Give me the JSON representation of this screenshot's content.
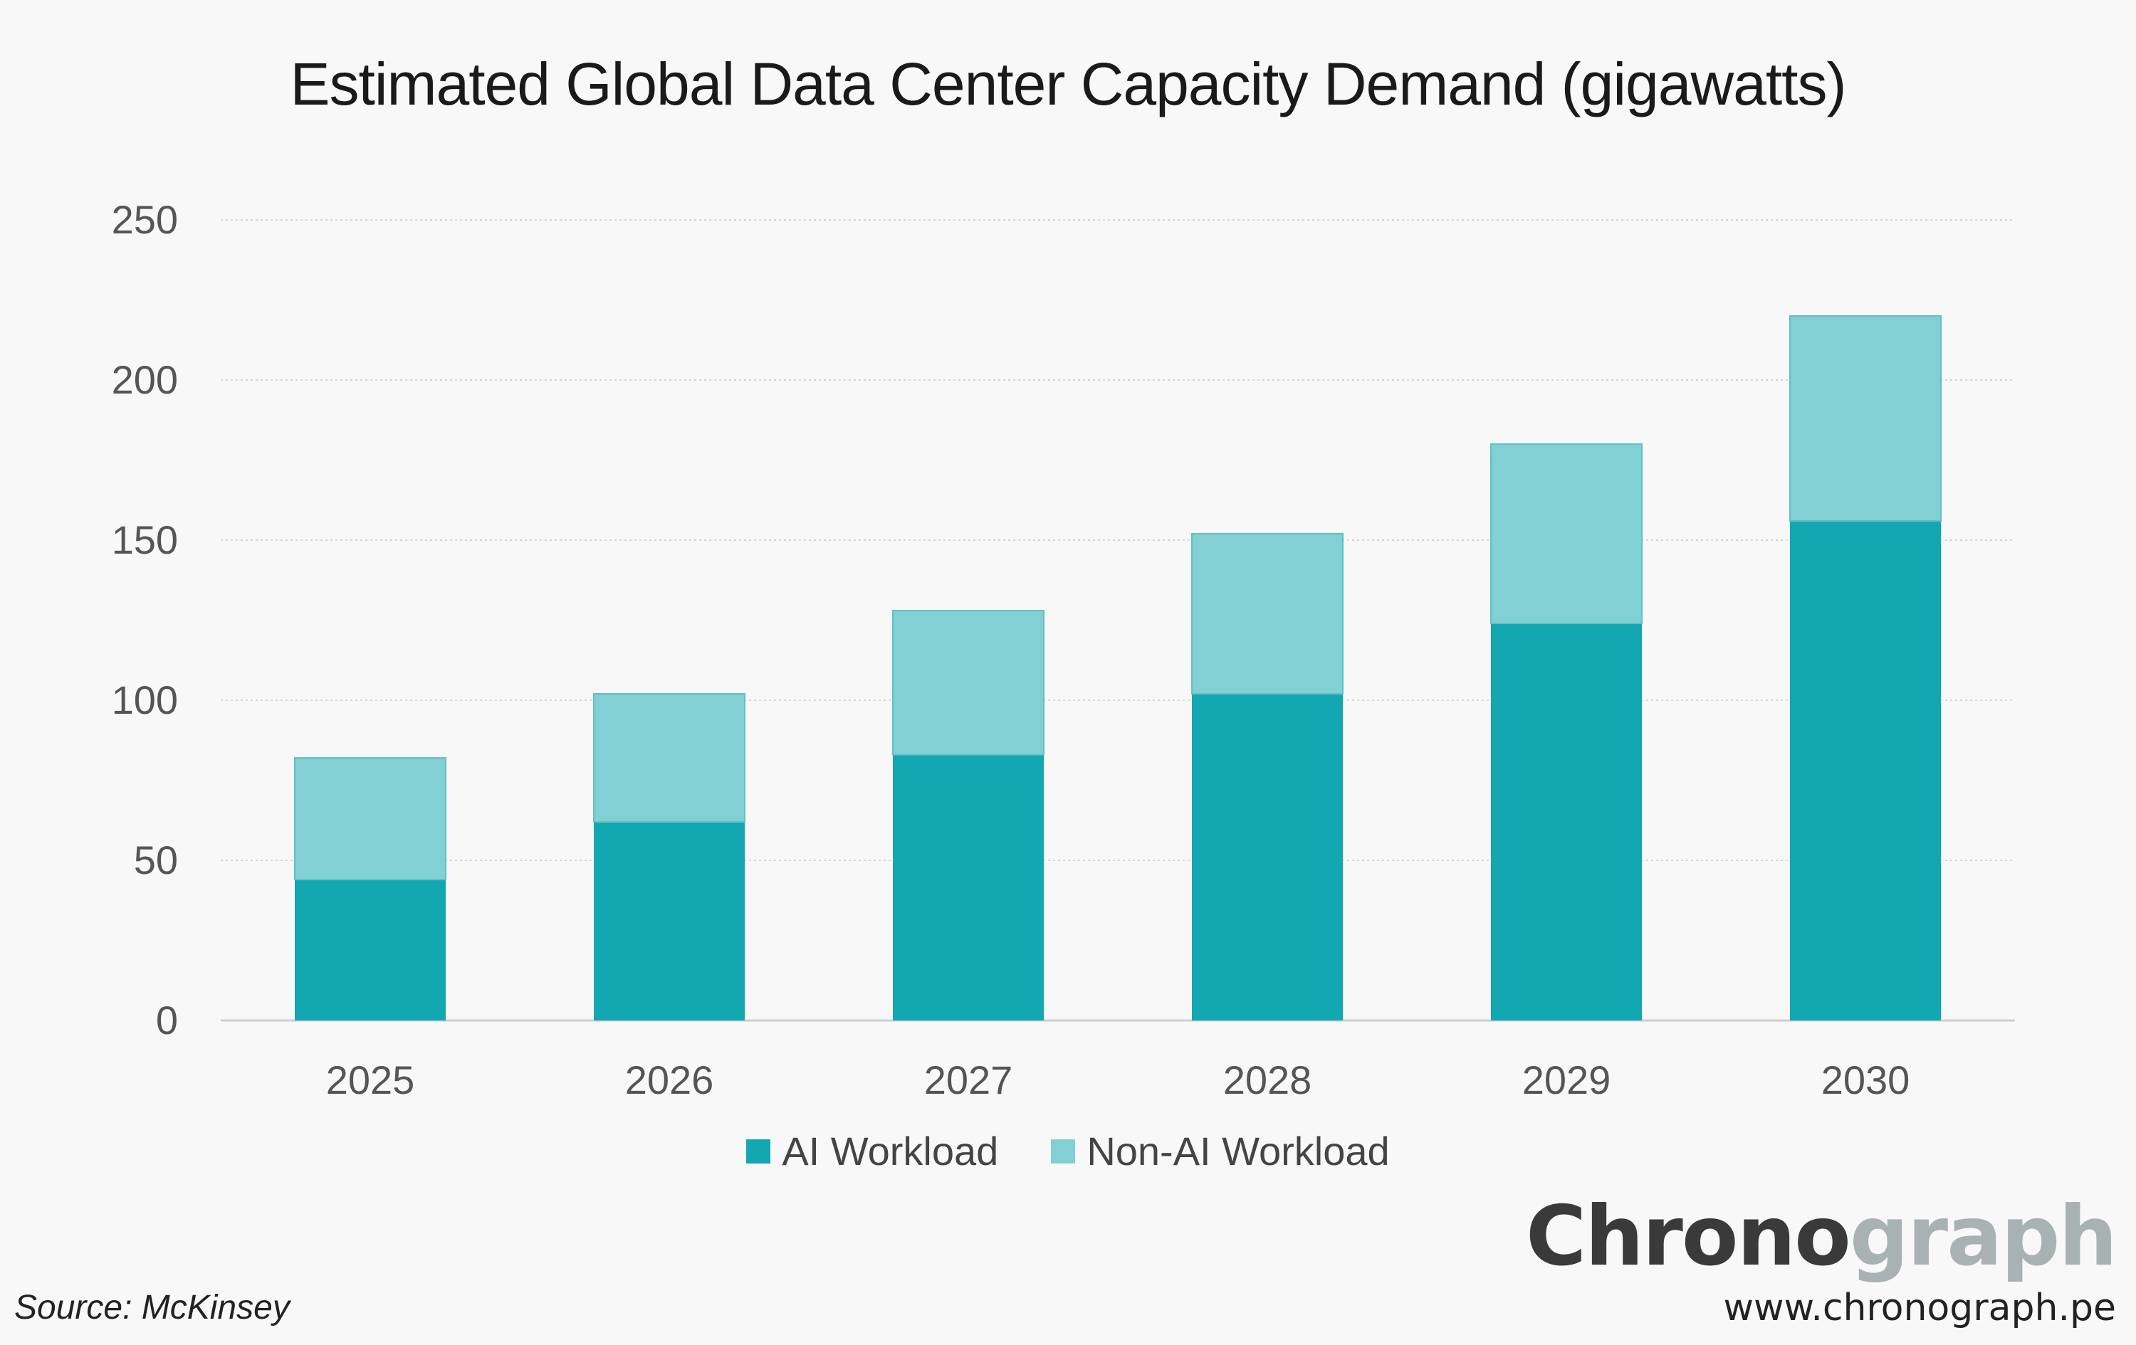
{
  "chart_data": {
    "type": "bar",
    "stacked": true,
    "title": "Estimated Global Data Center Capacity Demand (gigawatts)",
    "categories": [
      "2025",
      "2026",
      "2027",
      "2028",
      "2029",
      "2030"
    ],
    "series": [
      {
        "name": "AI Workload",
        "values": [
          44,
          62,
          83,
          102,
          124,
          156
        ],
        "color": "#12a7b1"
      },
      {
        "name": "Non-AI Workload",
        "values": [
          38,
          40,
          45,
          50,
          56,
          64
        ],
        "color": "#82d0d4"
      }
    ],
    "ylim": [
      0,
      250
    ],
    "yticks": [
      "0",
      "50",
      "100",
      "150",
      "200",
      "250"
    ],
    "grid": true,
    "legend_position": "bottom"
  },
  "footer": {
    "source": "Source: McKinsey",
    "brand_dark": "Chrono",
    "brand_light": "graph",
    "url": "www.chronograph.pe"
  }
}
